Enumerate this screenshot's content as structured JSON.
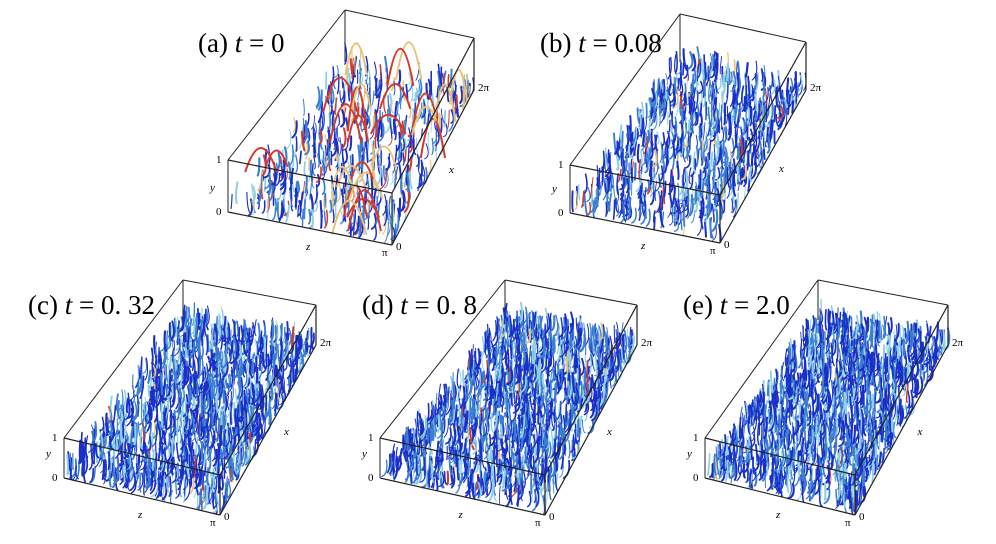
{
  "figure": {
    "panels": [
      {
        "id": "a",
        "title_prefix": "(a)",
        "title_var": "t",
        "title_value": "= 0",
        "axis_x": "x",
        "axis_y": "y",
        "axis_z": "z",
        "tick_y_top": "1",
        "tick_y_bottom": "0",
        "tick_x_end": "2π",
        "tick_z_end": "π",
        "tick_x_start": "0",
        "density": 0.55,
        "red_fraction": 0.18
      },
      {
        "id": "b",
        "title_prefix": "(b)",
        "title_var": "t",
        "title_value": "= 0.08",
        "axis_x": "x",
        "axis_y": "y",
        "axis_z": "z",
        "tick_y_top": "1",
        "tick_y_bottom": "0",
        "tick_x_end": "2π",
        "tick_z_end": "π",
        "tick_x_start": "0",
        "density": 0.65,
        "red_fraction": 0.04
      },
      {
        "id": "c",
        "title_prefix": "(c)",
        "title_var": "t",
        "title_value": "= 0. 32",
        "axis_x": "x",
        "axis_y": "y",
        "axis_z": "z",
        "tick_y_top": "1",
        "tick_y_bottom": "0",
        "tick_x_end": "2π",
        "tick_z_end": "π",
        "tick_x_start": "0",
        "density": 0.95,
        "red_fraction": 0.02
      },
      {
        "id": "d",
        "title_prefix": "(d)",
        "title_var": "t",
        "title_value": "= 0. 8",
        "axis_x": "x",
        "axis_y": "y",
        "axis_z": "z",
        "tick_y_top": "1",
        "tick_y_bottom": "0",
        "tick_x_end": "2π",
        "tick_z_end": "π",
        "tick_x_start": "0",
        "density": 1.0,
        "red_fraction": 0.02
      },
      {
        "id": "e",
        "title_prefix": "(e)",
        "title_var": "t",
        "title_value": "= 2.0",
        "axis_x": "x",
        "axis_y": "y",
        "axis_z": "z",
        "tick_y_top": "1",
        "tick_y_bottom": "0",
        "tick_x_end": "2π",
        "tick_z_end": "π",
        "tick_x_start": "0",
        "density": 1.0,
        "red_fraction": 0.01
      }
    ],
    "colors": {
      "dense": "#1a2fc8",
      "mid": "#3b7fd0",
      "light": "#8fd0e6",
      "warm": "#e8c27a",
      "hot": "#d33a2c",
      "frame": "#222222"
    }
  }
}
